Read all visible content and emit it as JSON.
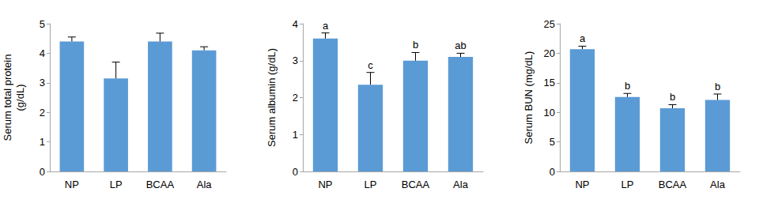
{
  "chart_data": [
    {
      "type": "bar",
      "ylabel": "Serum total protein\n(g/dL)",
      "categories": [
        "NP",
        "LP",
        "BCAA",
        "Ala"
      ],
      "values": [
        4.4,
        3.15,
        4.4,
        4.1
      ],
      "errors": [
        0.15,
        0.55,
        0.28,
        0.12
      ],
      "color": "#5b9bd5",
      "ylim": [
        0,
        5
      ],
      "yticks": [
        0,
        1,
        2,
        3,
        4,
        5
      ],
      "grid": false
    },
    {
      "type": "bar",
      "ylabel": "Serum albumin (g/dL)",
      "categories": [
        "NP",
        "LP",
        "BCAA",
        "Ala"
      ],
      "values": [
        3.6,
        2.35,
        3.0,
        3.1
      ],
      "errors": [
        0.15,
        0.33,
        0.22,
        0.1
      ],
      "annotations": [
        "a",
        "c",
        "b",
        "ab"
      ],
      "color": "#5b9bd5",
      "ylim": [
        0,
        4
      ],
      "yticks": [
        0,
        1,
        2,
        3,
        4
      ],
      "grid": false
    },
    {
      "type": "bar",
      "ylabel": "Serum BUN (mg/dL)",
      "categories": [
        "NP",
        "LP",
        "BCAA",
        "Ala"
      ],
      "values": [
        20.7,
        12.6,
        10.7,
        12.1
      ],
      "errors": [
        0.5,
        0.6,
        0.6,
        1.0
      ],
      "annotations": [
        "a",
        "b",
        "b",
        "b"
      ],
      "color": "#5b9bd5",
      "ylim": [
        0,
        25
      ],
      "yticks": [
        0,
        5,
        10,
        15,
        20,
        25
      ],
      "grid": false
    }
  ]
}
